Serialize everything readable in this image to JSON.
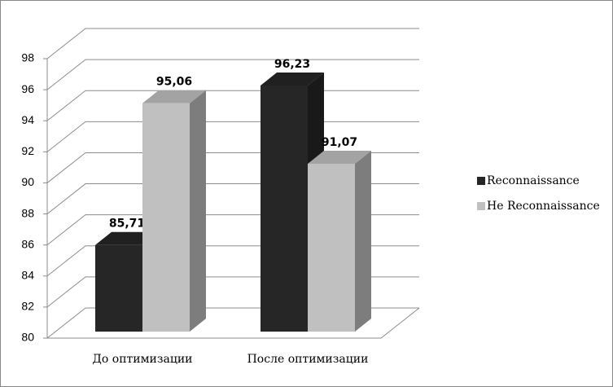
{
  "chart_data": {
    "type": "bar3d",
    "categories": [
      "До оптимизации",
      "После оптимизации"
    ],
    "series": [
      {
        "name": "Reconnaissance",
        "color": "#262626",
        "values": [
          85.71,
          96.23
        ],
        "value_labels": [
          "85,71",
          "96,23"
        ]
      },
      {
        "name": "He Reconnaissance",
        "color": "#c0c0c0",
        "values": [
          95.06,
          91.07
        ],
        "value_labels": [
          "95,06",
          "91,07"
        ]
      }
    ],
    "ylim": [
      80,
      98
    ],
    "yticks": [
      80,
      82,
      84,
      86,
      88,
      90,
      92,
      94,
      96,
      98
    ],
    "grid": true,
    "legend": "right"
  }
}
